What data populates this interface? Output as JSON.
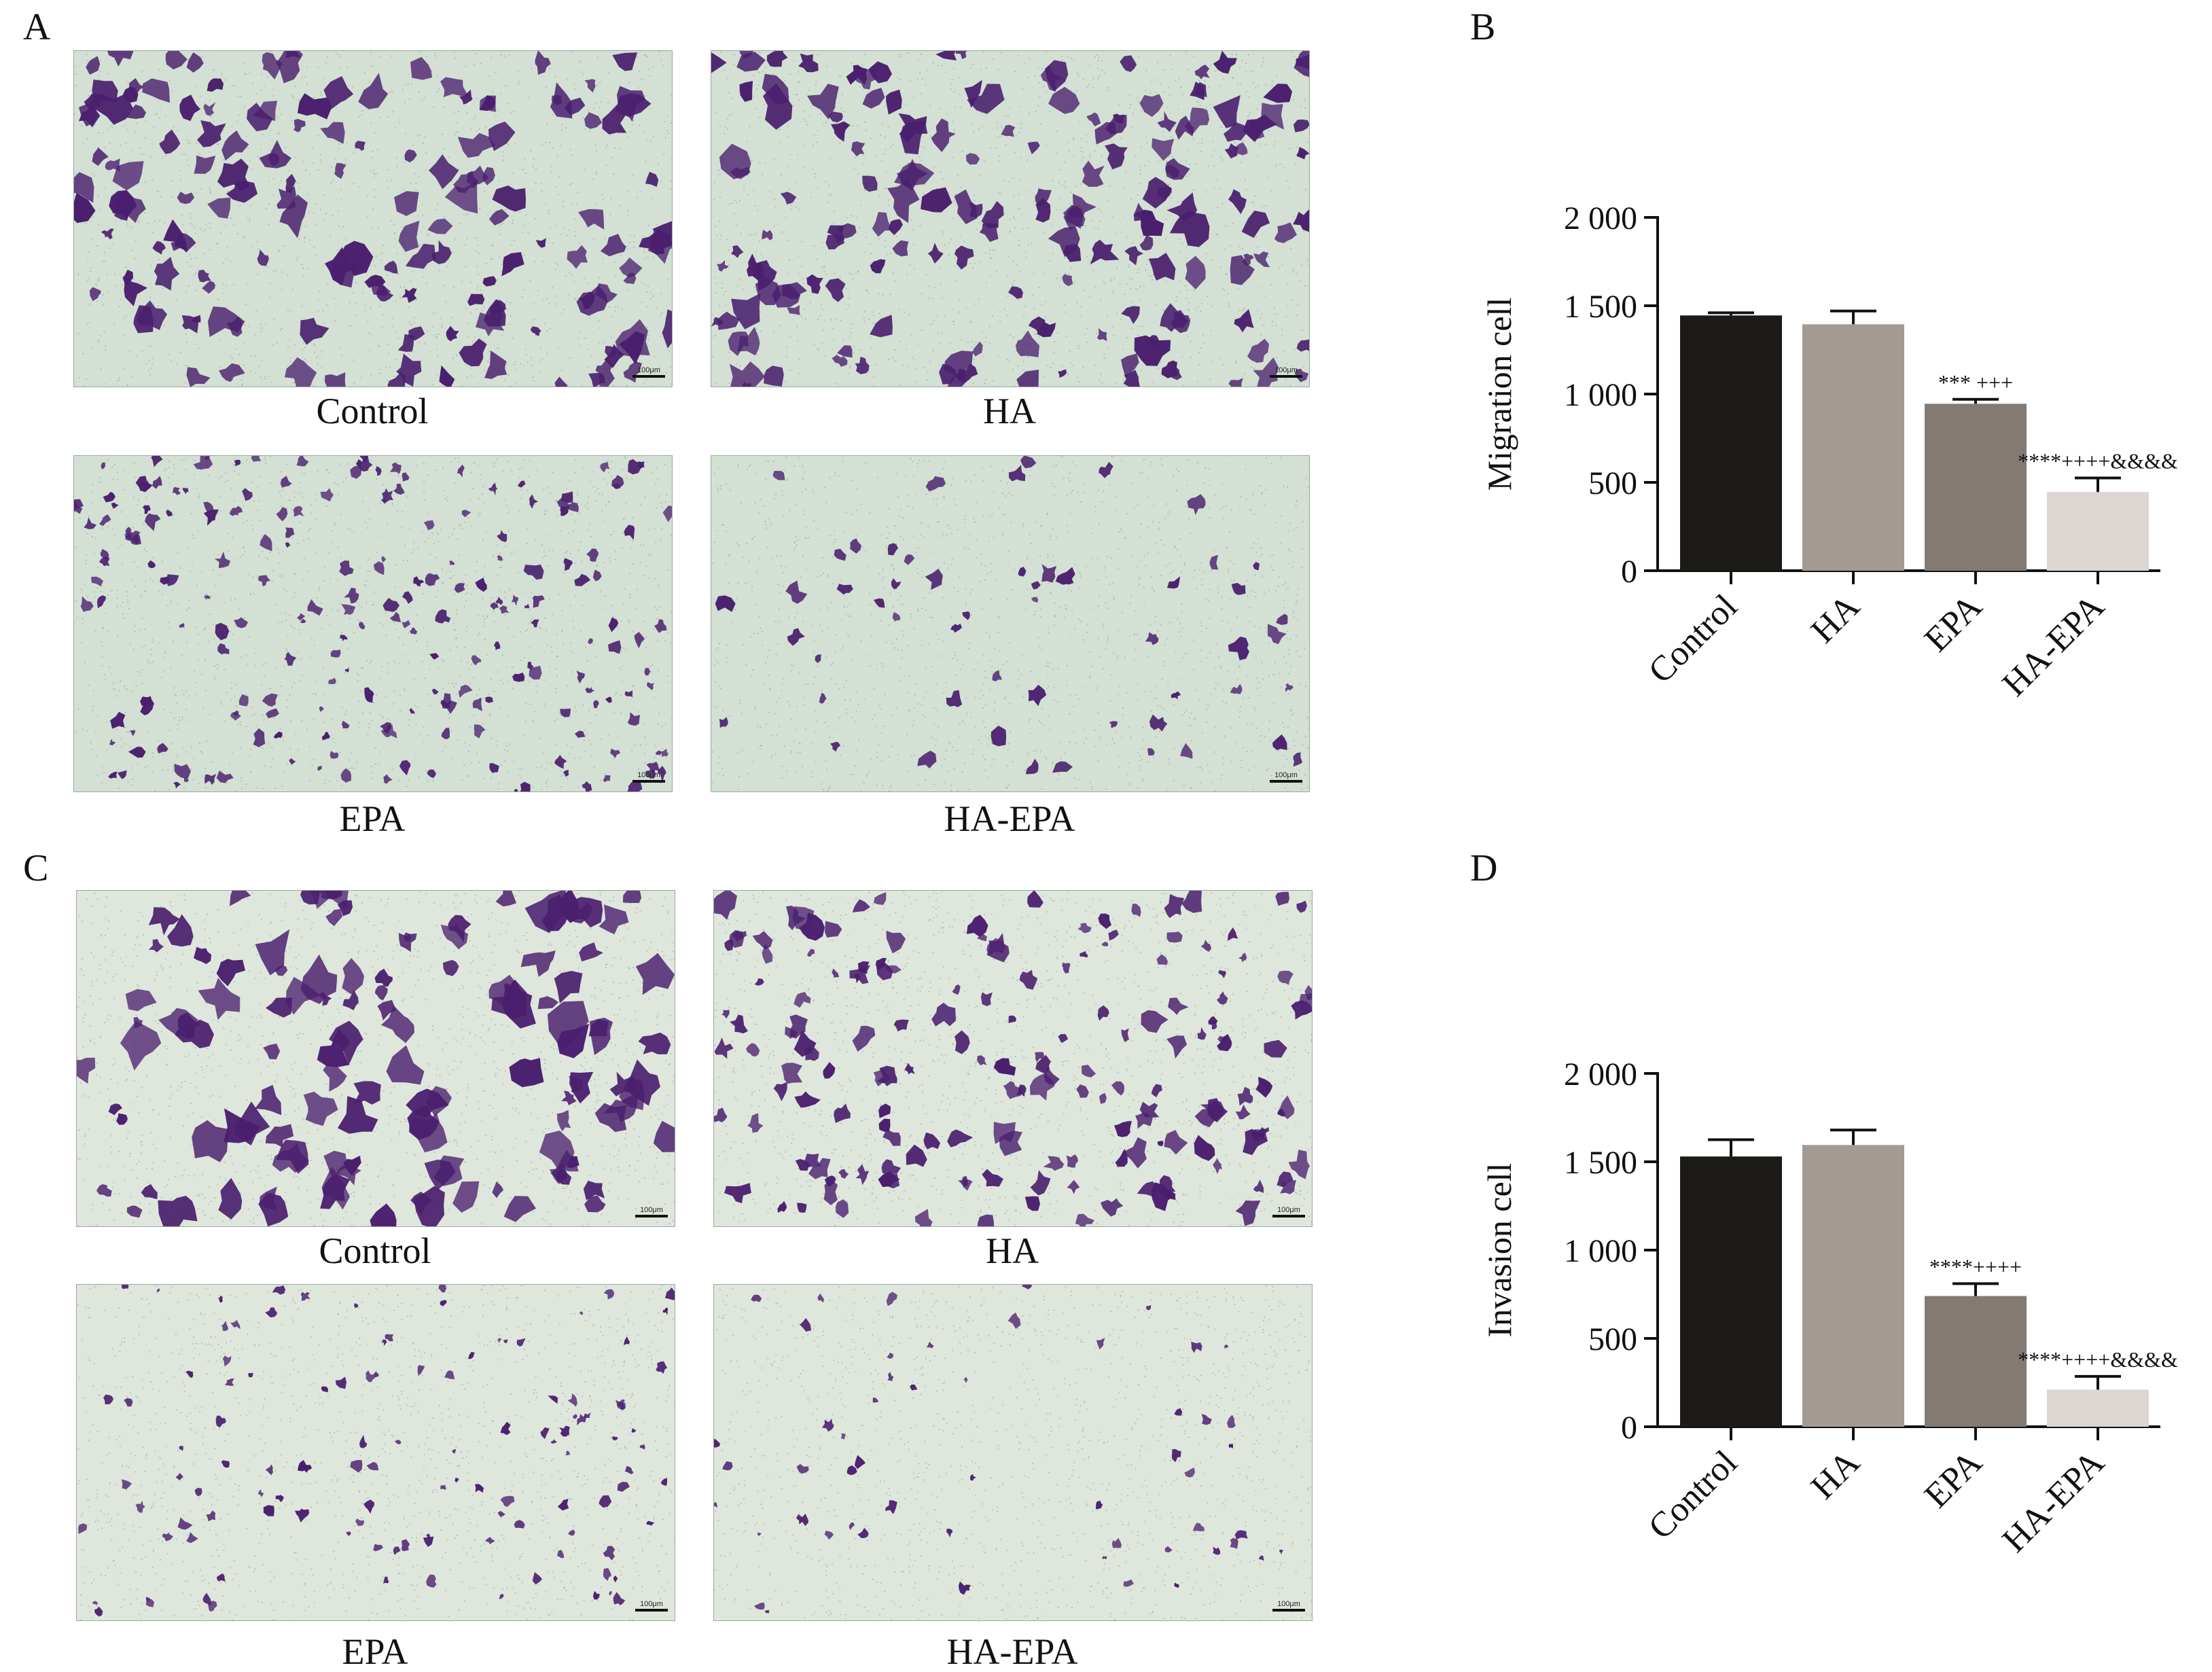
{
  "panels": {
    "A": {
      "letter": "A",
      "images": [
        {
          "caption": "Control",
          "scale": "100μm"
        },
        {
          "caption": "HA",
          "scale": "100μm"
        },
        {
          "caption": "EPA",
          "scale": "100μm"
        },
        {
          "caption": "HA-EPA",
          "scale": "100μm"
        }
      ]
    },
    "B": {
      "letter": "B"
    },
    "C": {
      "letter": "C",
      "images": [
        {
          "caption": "Control",
          "scale": "100μm"
        },
        {
          "caption": "HA",
          "scale": "100μm"
        },
        {
          "caption": "EPA",
          "scale": "100μm"
        },
        {
          "caption": "HA-EPA",
          "scale": "100μm"
        }
      ]
    },
    "D": {
      "letter": "D"
    }
  },
  "colors": {
    "bars": [
      "#1c1b18",
      "#a49a94",
      "#837a74",
      "#dcd5d2"
    ],
    "micro_bg_A": "#d3e0d3",
    "micro_bg_C": "#dfe6dc",
    "stain": "#4a1f6e"
  },
  "chart_data": [
    {
      "type": "bar",
      "categories": [
        "Control",
        "HA",
        "EPA",
        "HA-EPA"
      ],
      "values": [
        1445,
        1395,
        945,
        445
      ],
      "errors": [
        15,
        75,
        25,
        80
      ],
      "annotations": [
        "",
        "",
        "*** +++",
        "****++++&&&&"
      ],
      "ylabel": "Migration cell",
      "xlabel": "",
      "ylim": [
        0,
        2000
      ],
      "yticks": [
        0,
        500,
        1000,
        1500,
        2000
      ],
      "ytick_labels": [
        "0",
        "500",
        "1 000",
        "1 500",
        "2 000"
      ],
      "grid": false
    },
    {
      "type": "bar",
      "categories": [
        "Control",
        "HA",
        "EPA",
        "HA-EPA"
      ],
      "values": [
        1530,
        1595,
        740,
        210
      ],
      "errors": [
        95,
        85,
        70,
        75
      ],
      "annotations": [
        "",
        "",
        "****++++",
        "****++++&&&&"
      ],
      "ylabel": "Invasion cell",
      "xlabel": "",
      "ylim": [
        0,
        2000
      ],
      "yticks": [
        0,
        500,
        1000,
        1500,
        2000
      ],
      "ytick_labels": [
        "0",
        "500",
        "1 000",
        "1 500",
        "2 000"
      ],
      "grid": false
    }
  ]
}
